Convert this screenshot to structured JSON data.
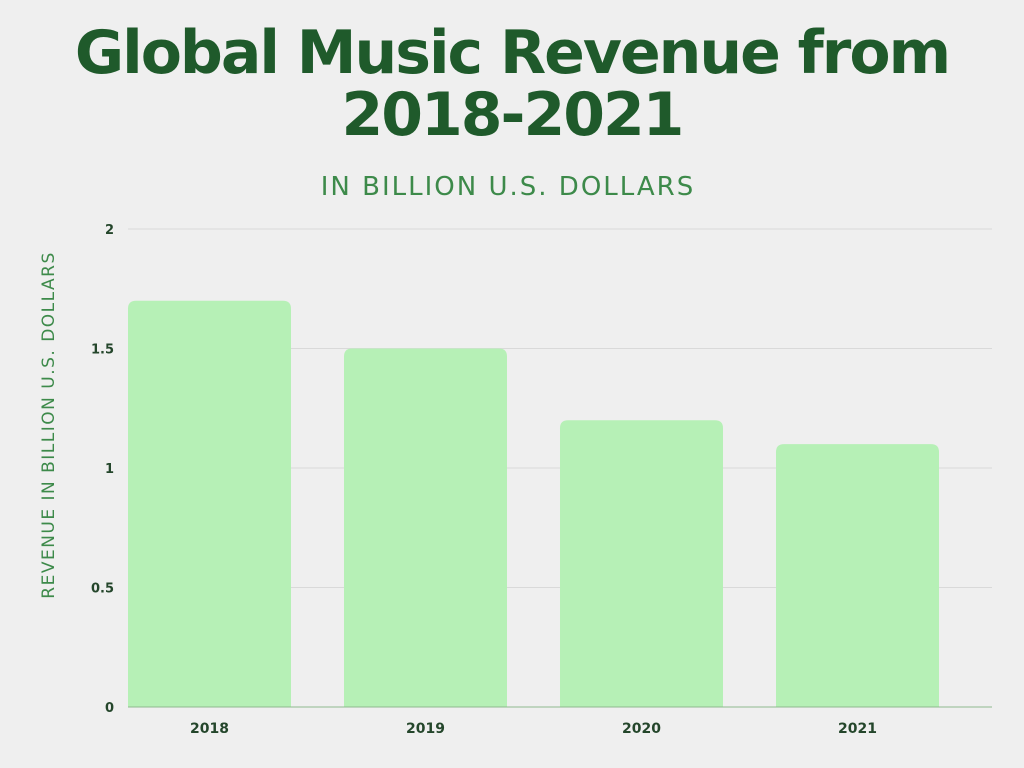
{
  "header": {
    "title_line1": "Global Music Revenue from",
    "title_line2": "2018-2021",
    "subtitle": "IN BILLION U.S. DOLLARS"
  },
  "colors": {
    "bar": "#b6f0b6",
    "title": "#1f5a2b",
    "accent": "#3d8a4a",
    "tick": "#24462b",
    "grid": "#d9d9d9"
  },
  "chart_data": {
    "type": "bar",
    "title": "Global Music Revenue from 2018-2021",
    "subtitle": "IN BILLION U.S. DOLLARS",
    "xlabel": "",
    "ylabel": "REVENUE IN BILLION U.S. DOLLARS",
    "categories": [
      "2018",
      "2019",
      "2020",
      "2021"
    ],
    "values": [
      1.7,
      1.5,
      1.2,
      1.1
    ],
    "ylim": [
      0,
      2
    ],
    "yticks": [
      0,
      0.5,
      1,
      1.5,
      2
    ],
    "ytick_labels": [
      "0",
      "0.5",
      "1",
      "1.5",
      "2"
    ],
    "grid": true
  }
}
